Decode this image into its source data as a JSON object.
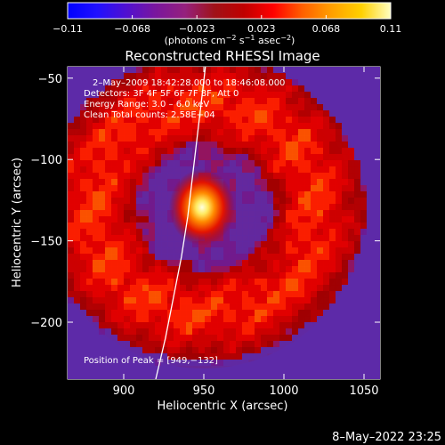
{
  "chart_data": {
    "type": "heatmap",
    "title": "Reconstructed RHESSI Image",
    "xlabel": "Heliocentric X (arcsec)",
    "ylabel": "Heliocentric Y (arcsec)",
    "xlim": [
      865,
      1060
    ],
    "ylim": [
      -235,
      -43
    ],
    "x_ticks": [
      900,
      950,
      1000,
      1050
    ],
    "y_ticks": [
      -50,
      -100,
      -150,
      -200
    ],
    "colorbar": {
      "min": -0.11,
      "max": 0.11,
      "ticks": [
        "−0.11",
        "−0.068",
        "−0.023",
        "0.023",
        "0.068",
        "0.11"
      ],
      "unit_text": "(photons cm",
      "unit_sup1": "−2",
      "unit_s": " s",
      "unit_sup2": "−1",
      "unit_asec": " asec",
      "unit_sup3": "−2",
      "unit_close": ")",
      "colors": [
        "#0000ff",
        "#2010ff",
        "#5010d0",
        "#7a169d",
        "#95207d",
        "#a01218",
        "#c00000",
        "#ff0000",
        "#ff6000",
        "#ffa000",
        "#ffd000",
        "#ffffc0"
      ]
    },
    "annotations": {
      "time_range": "2–May–2009 18:42:28.000 to 18:46:08.000",
      "detectors": "Detectors: 3F 4F 5F 6F 7F 8F, Att 0",
      "energy": "Energy Range: 3.0 – 6.0 keV",
      "clean": "Clean    Total counts: 2.58E+04",
      "peak": "Position of Peak = [949,−132]"
    },
    "peak": {
      "x": 949,
      "y": -132
    },
    "limb_curve": [
      {
        "x": 920,
        "y": -235
      },
      {
        "x": 926,
        "y": -210
      },
      {
        "x": 931,
        "y": -185
      },
      {
        "x": 936,
        "y": -160
      },
      {
        "x": 940,
        "y": -135
      },
      {
        "x": 943,
        "y": -110
      },
      {
        "x": 946,
        "y": -85
      },
      {
        "x": 949,
        "y": -60
      },
      {
        "x": 951,
        "y": -43
      }
    ],
    "grid": false
  },
  "footer": {
    "date": "8–May–2022 23:25"
  },
  "colors": {
    "background": "#000000",
    "plot_low": "#4a1aa0",
    "plot_mid": "#b00000",
    "plot_high": "#ff5000"
  }
}
